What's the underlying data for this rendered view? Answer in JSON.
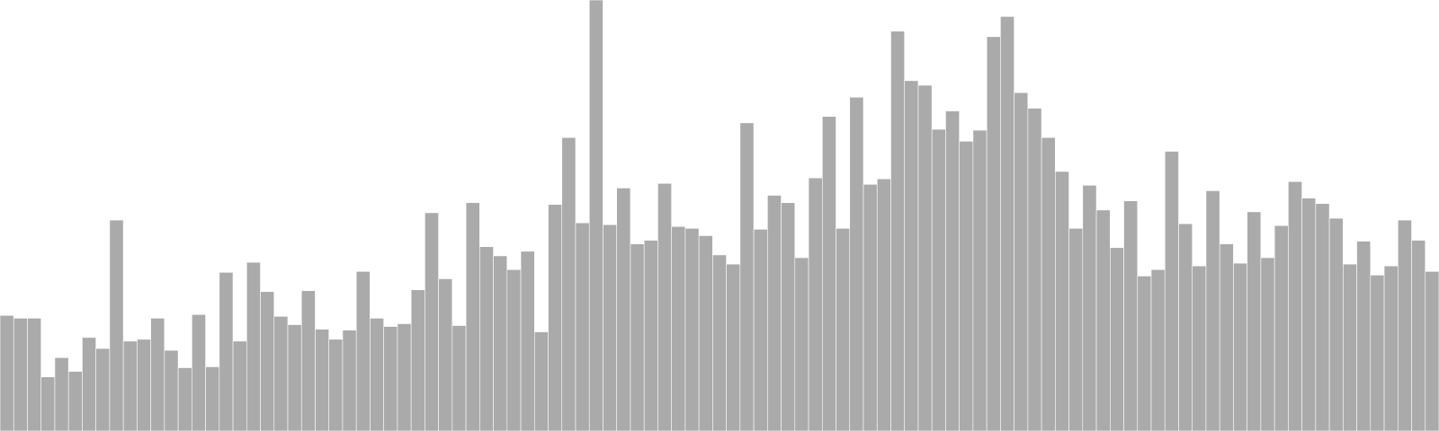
{
  "chart_data": {
    "type": "bar",
    "bar_color": "#aaaaaa",
    "background": "#ffffff",
    "grid": false,
    "axes_visible": false,
    "ylim": [
      0,
      470
    ],
    "values": [
      126,
      123,
      123,
      59,
      80,
      65,
      102,
      90,
      230,
      98,
      100,
      123,
      88,
      69,
      127,
      70,
      173,
      98,
      184,
      152,
      125,
      116,
      153,
      111,
      100,
      110,
      174,
      123,
      114,
      117,
      154,
      238,
      166,
      115,
      249,
      201,
      191,
      176,
      196,
      108,
      247,
      320,
      227,
      470,
      225,
      265,
      204,
      208,
      270,
      223,
      221,
      213,
      192,
      182,
      336,
      220,
      257,
      249,
      189,
      276,
      343,
      221,
      364,
      269,
      275,
      436,
      382,
      377,
      329,
      349,
      316,
      328,
      430,
      452,
      369,
      352,
      320,
      283,
      221,
      268,
      241,
      200,
      251,
      169,
      176,
      305,
      226,
      180,
      262,
      204,
      183,
      239,
      189,
      224,
      272,
      254,
      248,
      232,
      182,
      207,
      170,
      180,
      230,
      208,
      174
    ]
  }
}
